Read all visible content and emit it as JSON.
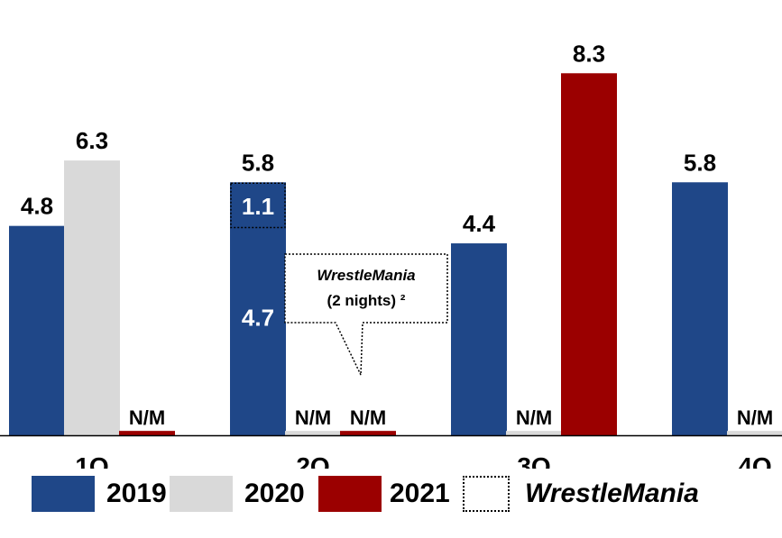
{
  "chart_data": {
    "type": "bar",
    "categories": [
      "1Q",
      "2Q",
      "3Q",
      "4Q"
    ],
    "series": [
      {
        "name": "2019",
        "color": "#1f4788",
        "values": [
          4.8,
          5.8,
          4.4,
          5.8
        ],
        "labels": [
          "4.8",
          "5.8",
          "4.4",
          "5.8"
        ]
      },
      {
        "name": "2020",
        "color": "#d9d9d9",
        "values": [
          6.3,
          0.1,
          0.1,
          0.1
        ],
        "labels": [
          "6.3",
          "N/M",
          "N/M",
          "N/M"
        ]
      },
      {
        "name": "2021",
        "color": "#9b0000",
        "values": [
          0.1,
          0.1,
          8.3,
          null
        ],
        "labels": [
          "N/M",
          "N/M",
          "8.3",
          ""
        ]
      }
    ],
    "wrestlemania_segment": {
      "category": "2Q",
      "series": "2019",
      "value": 1.1,
      "label": "1.1",
      "remainder_label": "4.7"
    },
    "callout": {
      "title": "WrestleMania",
      "subtitle": "(2 nights) ²"
    },
    "ylim": [
      0,
      9.2
    ],
    "legend_position": "bottom",
    "grid": false
  },
  "legend": [
    {
      "label": "2019",
      "color": "#1f4788",
      "style": "fill"
    },
    {
      "label": "2020",
      "color": "#d9d9d9",
      "style": "fill"
    },
    {
      "label": "2021",
      "color": "#9b0000",
      "style": "fill"
    },
    {
      "label": "WrestleMania",
      "color": "#000000",
      "style": "dotted"
    }
  ]
}
